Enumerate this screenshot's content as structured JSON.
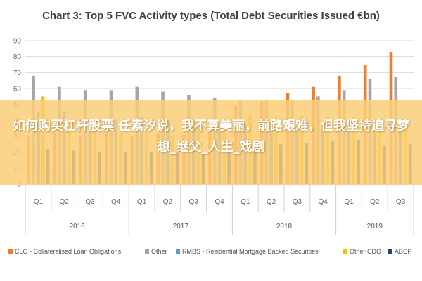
{
  "banner": {
    "text": "如何购买杠杆股票 任素汐说，我不算美丽，前路艰难，但我坚持追寻梦想_继父_人生_戏剧"
  },
  "chart_data": {
    "type": "bar",
    "title": "Chart 3: Top 5 FVC Activity types (Total Debt Securities Issued €bn)",
    "ylim": [
      0,
      90
    ],
    "yticks": [
      0,
      10,
      20,
      30,
      40,
      50,
      60,
      70,
      80,
      90
    ],
    "grid": true,
    "legend_position": "bottom",
    "categories": [
      "Q1",
      "Q2",
      "Q3",
      "Q4",
      "Q1",
      "Q2",
      "Q3",
      "Q4",
      "Q1",
      "Q2",
      "Q3",
      "Q4",
      "Q1",
      "Q2",
      "Q3"
    ],
    "groups": [
      {
        "label": "2016",
        "span": 4
      },
      {
        "label": "2017",
        "span": 4
      },
      {
        "label": "2018",
        "span": 4
      },
      {
        "label": "2019",
        "span": 3
      }
    ],
    "series": [
      {
        "name": "CLO - Collateralised Loan Obligations",
        "color": "#ED7D31",
        "values": [
          30,
          32,
          30,
          32,
          30,
          32,
          31,
          34,
          49,
          52,
          57,
          61,
          68,
          75,
          83
        ]
      },
      {
        "name": "Other",
        "color": "#A5A5A5",
        "values": [
          68,
          61,
          59,
          59,
          61,
          58,
          56,
          54,
          52,
          53,
          52,
          55,
          59,
          66,
          67
        ]
      },
      {
        "name": "RMBS - Residential Mortgage Backed Securities",
        "color": "#5B9BD5",
        "values": [
          45,
          45,
          41,
          40,
          42,
          40,
          40,
          38,
          38,
          38,
          37,
          37,
          37,
          36,
          36
        ]
      },
      {
        "name": "Other CDO",
        "color": "#FFC000",
        "values": [
          55,
          33,
          34,
          32,
          33,
          30,
          35,
          33,
          44,
          43,
          43,
          42,
          42,
          34,
          34
        ]
      },
      {
        "name": "ABCP",
        "color": "#264478",
        "values": [
          22,
          21,
          20,
          20,
          20,
          20,
          20,
          20,
          24,
          25,
          26,
          27,
          28,
          24,
          25
        ]
      }
    ]
  }
}
